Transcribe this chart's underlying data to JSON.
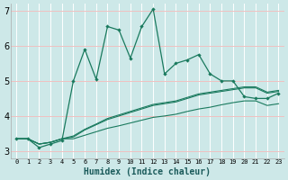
{
  "xlabel": "Humidex (Indice chaleur)",
  "bg_color": "#cde8e8",
  "grid_color": "#f0c8c8",
  "line_color": "#1a7a5e",
  "xlim": [
    -0.5,
    23.5
  ],
  "ylim": [
    2.8,
    7.2
  ],
  "yticks": [
    3,
    4,
    5,
    6,
    7
  ],
  "xtick_labels": [
    "0",
    "1",
    "2",
    "3",
    "4",
    "5",
    "6",
    "7",
    "8",
    "9",
    "10",
    "11",
    "12",
    "13",
    "14",
    "15",
    "16",
    "17",
    "18",
    "19",
    "20",
    "21",
    "22",
    "23"
  ],
  "series1_x": [
    0,
    1,
    2,
    3,
    4,
    5,
    6,
    7,
    8,
    9,
    10,
    11,
    12,
    13,
    14,
    15,
    16,
    17,
    18,
    19,
    20,
    21,
    22,
    23
  ],
  "series1_y": [
    3.35,
    3.35,
    3.1,
    3.2,
    3.3,
    5.0,
    5.9,
    5.05,
    6.55,
    6.45,
    5.65,
    6.55,
    7.05,
    5.2,
    5.5,
    5.6,
    5.75,
    5.2,
    5.0,
    5.0,
    4.55,
    4.5,
    4.5,
    4.65
  ],
  "series2_x": [
    0,
    1,
    2,
    3,
    4,
    5,
    6,
    7,
    8,
    9,
    10,
    11,
    12,
    13,
    14,
    15,
    16,
    17,
    18,
    19,
    20,
    21,
    22,
    23
  ],
  "series2_y": [
    3.35,
    3.35,
    3.2,
    3.25,
    3.35,
    3.4,
    3.6,
    3.75,
    3.9,
    4.0,
    4.1,
    4.2,
    4.3,
    4.35,
    4.4,
    4.5,
    4.6,
    4.65,
    4.7,
    4.75,
    4.8,
    4.8,
    4.65,
    4.7
  ],
  "series3_x": [
    0,
    1,
    2,
    3,
    4,
    5,
    6,
    7,
    8,
    9,
    10,
    11,
    12,
    13,
    14,
    15,
    16,
    17,
    18,
    19,
    20,
    21,
    22,
    23
  ],
  "series3_y": [
    3.35,
    3.35,
    3.2,
    3.25,
    3.35,
    3.43,
    3.62,
    3.77,
    3.93,
    4.03,
    4.13,
    4.23,
    4.33,
    4.38,
    4.43,
    4.53,
    4.63,
    4.68,
    4.73,
    4.78,
    4.83,
    4.83,
    4.68,
    4.73
  ],
  "series4_x": [
    0,
    1,
    2,
    3,
    4,
    5,
    6,
    7,
    8,
    9,
    10,
    11,
    12,
    13,
    14,
    15,
    16,
    17,
    18,
    19,
    20,
    21,
    22,
    23
  ],
  "series4_y": [
    3.35,
    3.35,
    3.2,
    3.25,
    3.35,
    3.35,
    3.45,
    3.55,
    3.65,
    3.72,
    3.8,
    3.88,
    3.96,
    4.0,
    4.05,
    4.13,
    4.2,
    4.25,
    4.32,
    4.38,
    4.43,
    4.43,
    4.3,
    4.35
  ]
}
